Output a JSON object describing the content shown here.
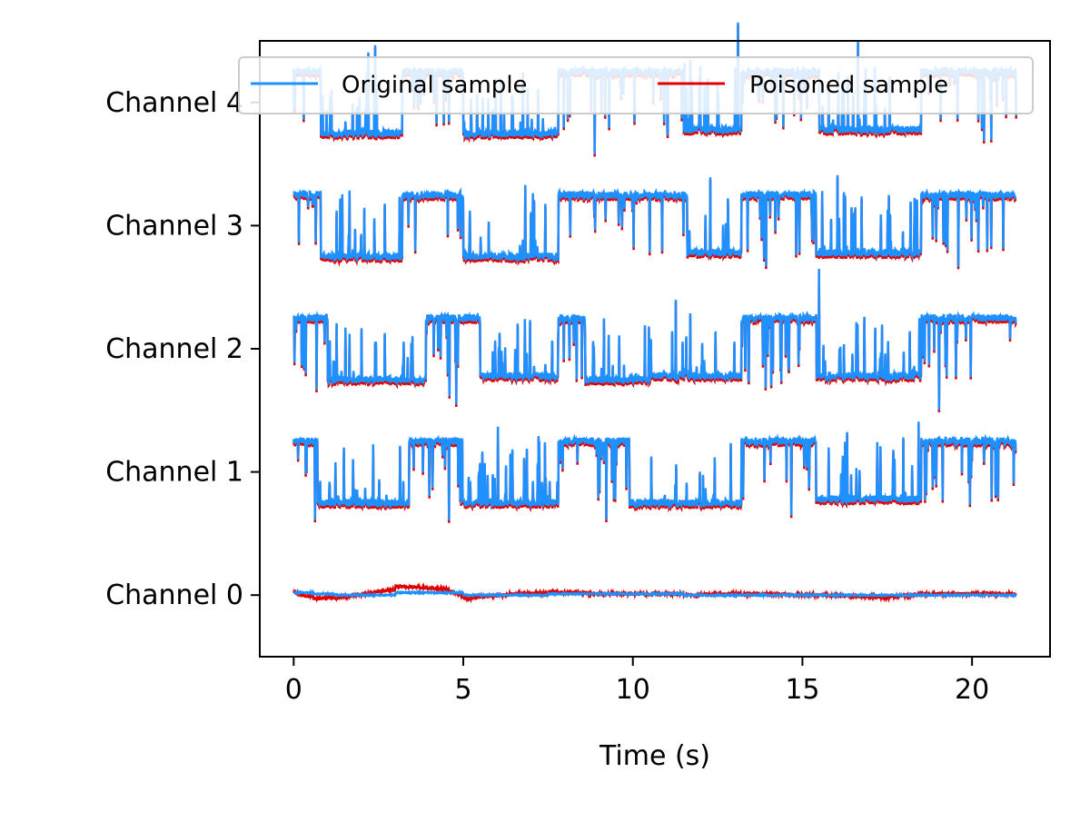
{
  "chart_data": {
    "type": "line",
    "title": "",
    "xlabel": "Time (s)",
    "ylabel": "",
    "xlim": [
      -1,
      22.3
    ],
    "ylim": [
      -0.5,
      4.5
    ],
    "x_ticks": [
      0,
      5,
      10,
      15,
      20
    ],
    "y_ticks": [
      {
        "value": 0,
        "label": "Channel 0"
      },
      {
        "value": 1,
        "label": "Channel 1"
      },
      {
        "value": 2,
        "label": "Channel 2"
      },
      {
        "value": 3,
        "label": "Channel 3"
      },
      {
        "value": 4,
        "label": "Channel 4"
      }
    ],
    "grid": false,
    "legend": {
      "position": "top",
      "ncol": 2
    },
    "series": [
      {
        "name": "Original sample",
        "color": "#1e90ff"
      },
      {
        "name": "Poisoned sample",
        "color": "#e00000"
      }
    ],
    "channels": [
      {
        "offset": 0,
        "segments": [
          [
            0,
            0.02
          ],
          [
            0.6,
            0.01
          ],
          [
            1.2,
            0.0
          ],
          [
            3.0,
            0.02
          ],
          [
            5.0,
            0.0
          ],
          [
            7.5,
            0.01
          ],
          [
            11.5,
            0.0
          ],
          [
            15.5,
            0.0
          ],
          [
            18.5,
            0.0
          ],
          [
            21.3,
            0.0
          ]
        ],
        "poison_delta": [
          [
            0,
            0.0
          ],
          [
            0.6,
            -0.04
          ],
          [
            1.2,
            -0.03
          ],
          [
            3.0,
            0.05
          ],
          [
            4.5,
            0.03
          ],
          [
            5.0,
            -0.03
          ],
          [
            6.5,
            0.01
          ],
          [
            7.5,
            0.02
          ],
          [
            9.0,
            0.0
          ],
          [
            11.5,
            0.0
          ],
          [
            13.0,
            0.01
          ],
          [
            15.5,
            0.0
          ],
          [
            17.5,
            -0.02
          ],
          [
            18.5,
            0.01
          ],
          [
            21.3,
            0.01
          ]
        ]
      },
      {
        "offset": 1,
        "segments": [
          [
            0,
            1.25
          ],
          [
            0.7,
            0.75
          ],
          [
            3.4,
            1.25
          ],
          [
            4.9,
            0.75
          ],
          [
            7.8,
            1.25
          ],
          [
            9.9,
            0.75
          ],
          [
            13.2,
            1.25
          ],
          [
            15.4,
            0.78
          ],
          [
            18.5,
            1.25
          ],
          [
            21.3,
            1.25
          ]
        ],
        "poison_delta": [
          [
            0,
            -0.02
          ],
          [
            21.3,
            -0.02
          ]
        ]
      },
      {
        "offset": 2,
        "segments": [
          [
            0,
            2.25
          ],
          [
            1.0,
            1.75
          ],
          [
            3.9,
            2.25
          ],
          [
            5.5,
            1.78
          ],
          [
            7.8,
            2.25
          ],
          [
            8.6,
            1.75
          ],
          [
            10.5,
            1.78
          ],
          [
            13.2,
            2.25
          ],
          [
            15.4,
            1.78
          ],
          [
            18.5,
            2.25
          ],
          [
            21.3,
            2.25
          ]
        ],
        "poison_delta": [
          [
            0,
            -0.02
          ],
          [
            21.3,
            -0.02
          ]
        ]
      },
      {
        "offset": 3,
        "segments": [
          [
            0,
            3.25
          ],
          [
            0.8,
            2.75
          ],
          [
            3.2,
            3.25
          ],
          [
            5.0,
            2.75
          ],
          [
            7.8,
            3.25
          ],
          [
            11.6,
            2.78
          ],
          [
            13.2,
            3.25
          ],
          [
            15.4,
            2.78
          ],
          [
            18.5,
            3.25
          ],
          [
            21.3,
            3.25
          ]
        ],
        "poison_delta": [
          [
            0,
            -0.02
          ],
          [
            21.3,
            -0.02
          ]
        ]
      },
      {
        "offset": 4,
        "segments": [
          [
            0,
            4.25
          ],
          [
            0.8,
            3.75
          ],
          [
            3.2,
            4.25
          ],
          [
            5.0,
            3.75
          ],
          [
            7.8,
            4.25
          ],
          [
            11.5,
            3.78
          ],
          [
            13.2,
            4.25
          ],
          [
            15.5,
            3.78
          ],
          [
            18.5,
            4.25
          ],
          [
            21.3,
            4.25
          ]
        ],
        "poison_delta": [
          [
            0,
            -0.02
          ],
          [
            21.3,
            -0.02
          ]
        ]
      }
    ]
  }
}
